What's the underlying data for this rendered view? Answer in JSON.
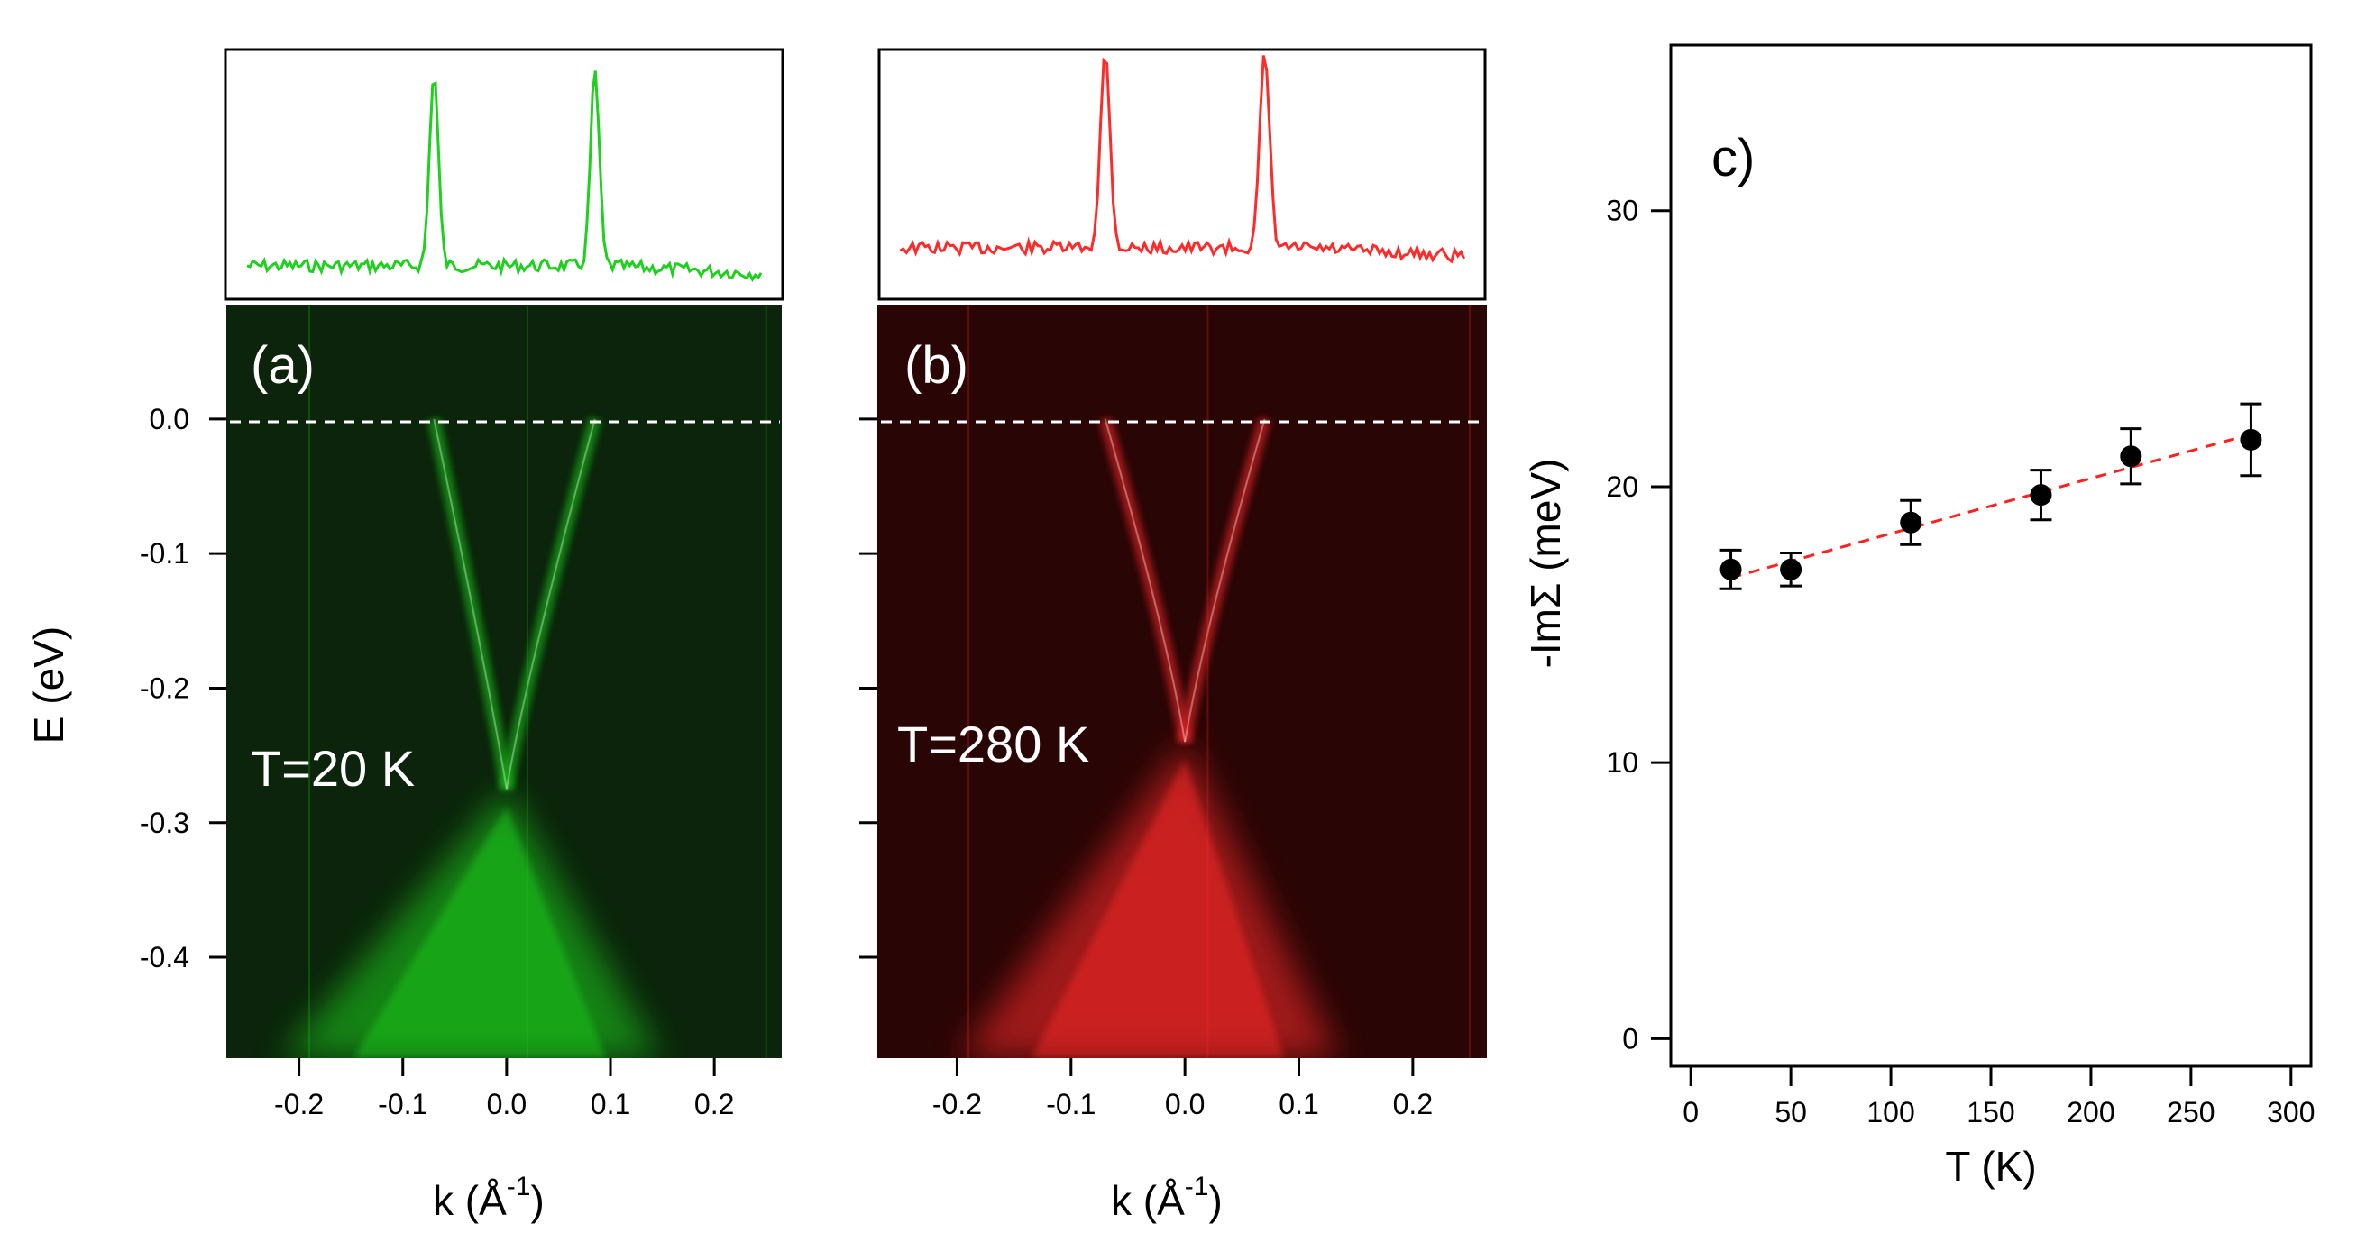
{
  "colors": {
    "green": "#1fd01f",
    "red": "#ff2a2a",
    "green_bg": "#0b240b",
    "red_bg": "#2a0505",
    "fit_line": "#ff2020"
  },
  "panels": {
    "a": {
      "label": "(a)",
      "temperature_label": "T=20 K",
      "colormap": "green"
    },
    "b": {
      "label": "(b)",
      "temperature_label": "T=280 K",
      "colormap": "red"
    },
    "c": {
      "label": "c)"
    }
  },
  "shared_axes": {
    "ylabel": "E (eV)",
    "ylabel_parts": {
      "base": "E (eV)"
    },
    "xlabel_parts": {
      "base": "k (Å",
      "sup": "-1",
      "close": ")"
    }
  },
  "chart_data": [
    {
      "type": "heatmap",
      "panel": "a",
      "title": "",
      "xlim": [
        -0.27,
        0.265
      ],
      "ylim": [
        -0.475,
        0.085
      ],
      "xticks": [
        -0.2,
        -0.1,
        0.0,
        0.1,
        0.2
      ],
      "xtick_labels": [
        "-0.2",
        "-0.1",
        "0.0",
        "0.1",
        "0.2"
      ],
      "yticks": [
        0.0,
        -0.1,
        -0.2,
        -0.3,
        -0.4
      ],
      "ytick_labels": [
        "0.0",
        "-0.1",
        "-0.2",
        "-0.3",
        "-0.4"
      ],
      "dirac_point": {
        "k": 0.0,
        "E": -0.275
      },
      "fermi_level_line": 0.0,
      "fermi_crossings_k": [
        -0.07,
        0.085
      ],
      "mdc_peaks_k": [
        -0.07,
        0.085
      ]
    },
    {
      "type": "heatmap",
      "panel": "b",
      "title": "",
      "xlim": [
        -0.27,
        0.265
      ],
      "ylim": [
        -0.475,
        0.085
      ],
      "xticks": [
        -0.2,
        -0.1,
        0.0,
        0.1,
        0.2
      ],
      "xtick_labels": [
        "-0.2",
        "-0.1",
        "0.0",
        "0.1",
        "0.2"
      ],
      "yticks": [
        0.0,
        -0.1,
        -0.2,
        -0.3,
        -0.4
      ],
      "dirac_point": {
        "k": 0.0,
        "E": -0.24
      },
      "fermi_level_line": 0.0,
      "fermi_crossings_k": [
        -0.07,
        0.07
      ],
      "mdc_peaks_k": [
        -0.07,
        0.07
      ]
    },
    {
      "type": "scatter",
      "panel": "c",
      "xlabel": "T (K)",
      "ylabel_parts": {
        "base": "-ImΣ (meV)"
      },
      "xlim": [
        -10,
        310
      ],
      "ylim": [
        -1,
        36
      ],
      "xticks": [
        0,
        50,
        100,
        150,
        200,
        250,
        300
      ],
      "xtick_labels": [
        "0",
        "50",
        "100",
        "150",
        "200",
        "250",
        "300"
      ],
      "yticks": [
        0,
        10,
        20,
        30
      ],
      "ytick_labels": [
        "0",
        "10",
        "20",
        "30"
      ],
      "x": [
        20,
        50,
        110,
        175,
        220,
        280
      ],
      "y": [
        17.0,
        17.0,
        18.7,
        19.7,
        21.1,
        21.7
      ],
      "yerr": [
        0.7,
        0.6,
        0.8,
        0.9,
        1.0,
        1.3
      ],
      "fit_line": {
        "x": [
          20,
          280
        ],
        "y": [
          16.7,
          21.9
        ],
        "style": "dashed"
      }
    }
  ]
}
